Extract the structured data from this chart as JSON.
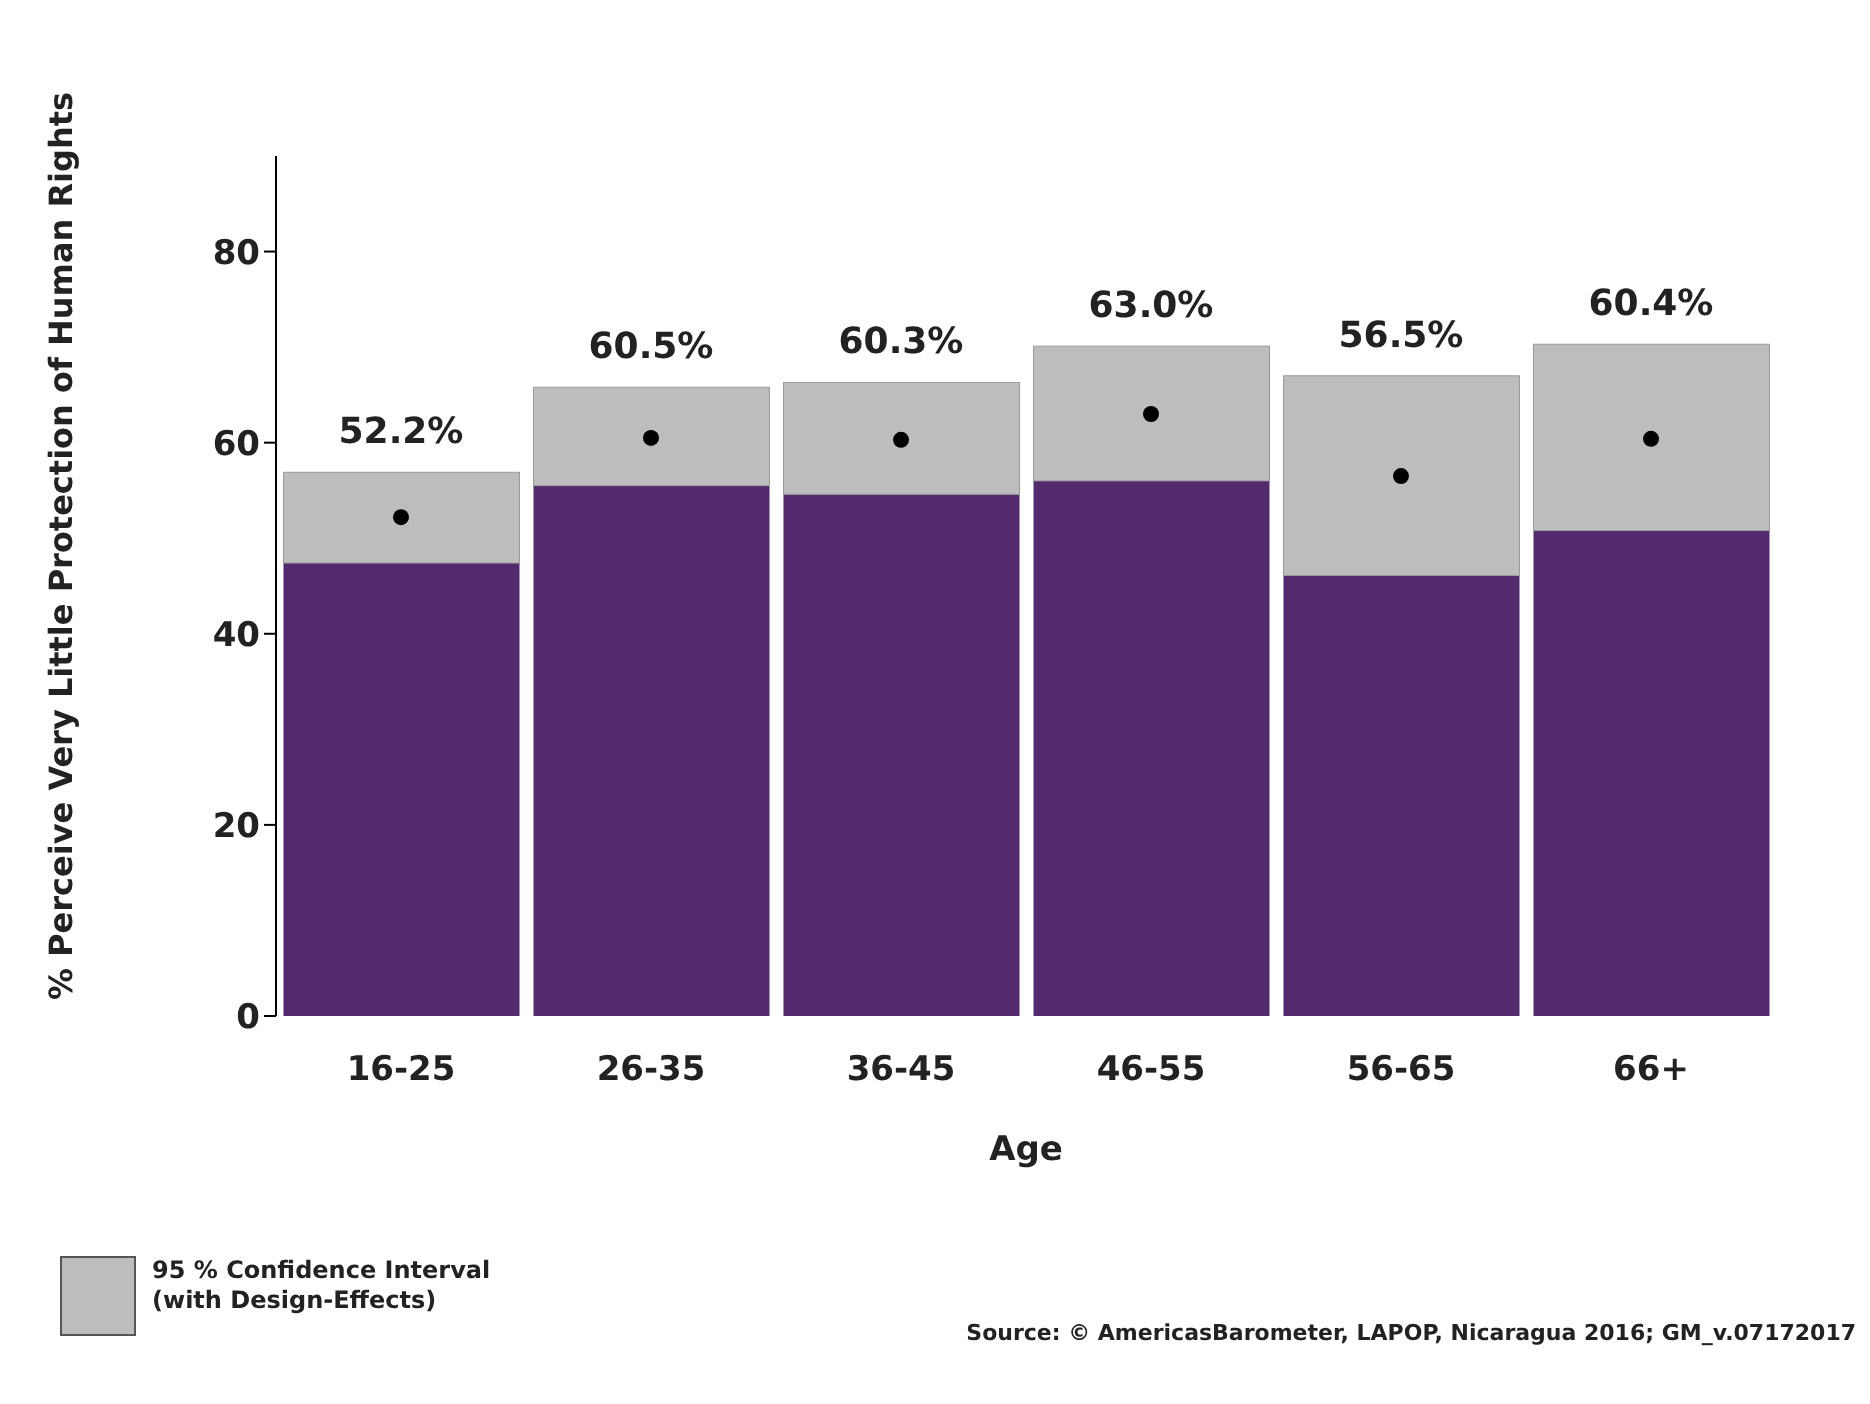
{
  "chart_data": {
    "type": "bar",
    "stacked": true,
    "xlabel": "Age",
    "ylabel": "% Perceive Very Little Protection of Human Rights",
    "categories": [
      "16-25",
      "26-35",
      "36-45",
      "46-55",
      "56-65",
      "66+"
    ],
    "series": [
      {
        "color": "#532a6e",
        "values": [
          47.4,
          55.5,
          54.6,
          56.0,
          46.1,
          50.8
        ]
      },
      {
        "name": "95 % Confidence Interval (with Design-Effects)",
        "color": "#bdbdbd",
        "values": [
          9.5,
          10.3,
          11.7,
          14.1,
          20.9,
          19.5
        ]
      },
      {
        "type": "scatter",
        "color": "#000000",
        "marker": "circle",
        "x": [
          "16-25",
          "26-35",
          "36-45",
          "46-55",
          "56-65",
          "66+"
        ],
        "values": [
          52.2,
          60.5,
          60.3,
          63.0,
          56.5,
          60.4
        ],
        "value_labels": [
          "52.2%",
          "60.5%",
          "60.3%",
          "63.0%",
          "56.5%",
          "60.4%"
        ]
      }
    ],
    "ylim": [
      0,
      90
    ],
    "yticks": [
      0,
      20,
      40,
      60,
      80
    ],
    "grid": false,
    "legend": "bottom left",
    "annotations": [
      "Source: © AmericasBarometer, LAPOP, Nicaragua 2016; GM_v.07172017"
    ]
  }
}
